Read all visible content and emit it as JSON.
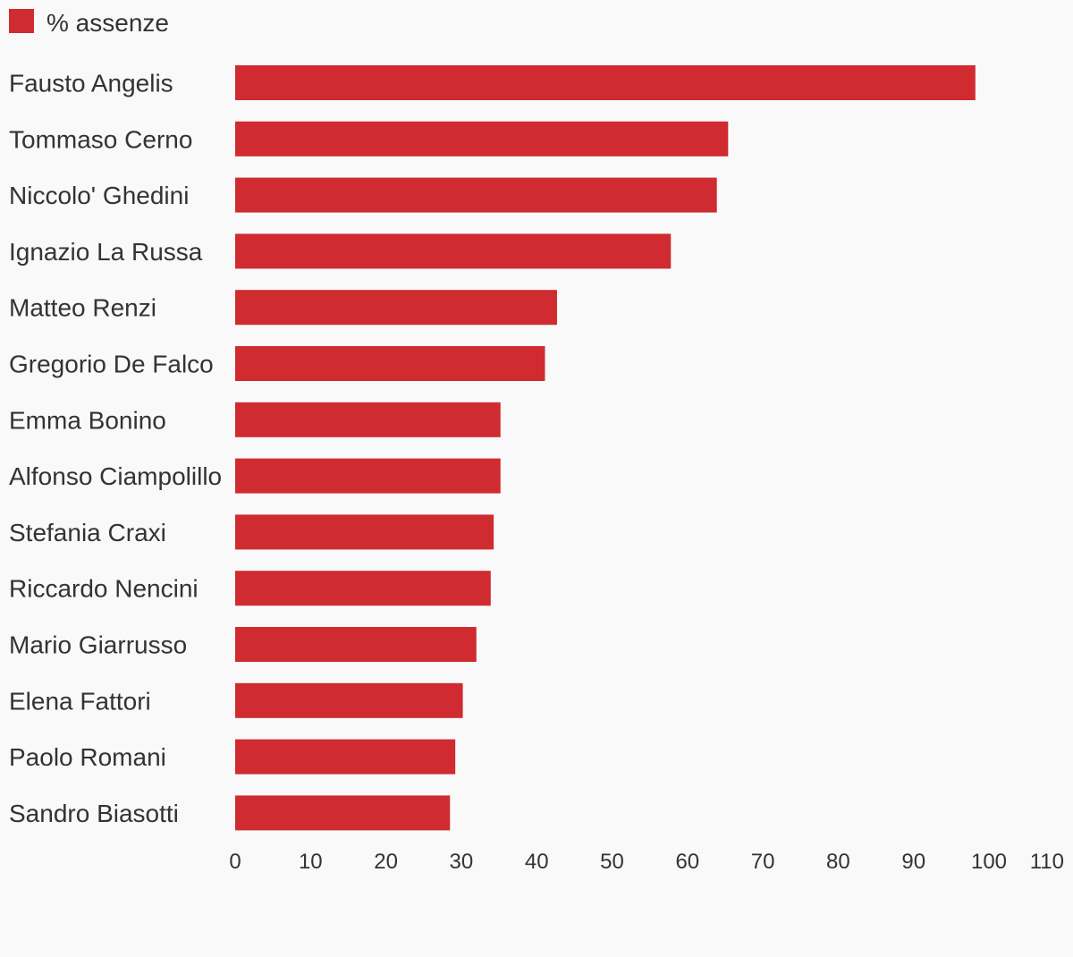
{
  "chart_data": {
    "type": "bar",
    "orientation": "horizontal",
    "title": "",
    "xlabel": "",
    "ylabel": "",
    "legend": {
      "position": "top-left",
      "label": "% assenze"
    },
    "color": "#cf2b31",
    "categories": [
      "Fausto Angelis",
      "Tommaso Cerno",
      "Niccolo' Ghedini",
      "Ignazio La Russa",
      "Matteo Renzi",
      "Gregorio De Falco",
      "Emma Bonino",
      "Alfonso Ciampolillo",
      "Stefania Craxi",
      "Riccardo Nencini",
      "Mario Giarrusso",
      "Elena Fattori",
      "Paolo Romani",
      "Sandro Biasotti"
    ],
    "series": [
      {
        "name": "% assenze",
        "values": [
          98.2,
          65.4,
          63.9,
          57.8,
          42.7,
          41.1,
          35.2,
          35.2,
          34.3,
          33.9,
          32.0,
          30.2,
          29.2,
          28.5
        ]
      }
    ],
    "xlim": [
      0,
      110
    ],
    "xticks": [
      0,
      10,
      20,
      30,
      40,
      50,
      60,
      70,
      80,
      90,
      100,
      110
    ],
    "grid": false
  }
}
